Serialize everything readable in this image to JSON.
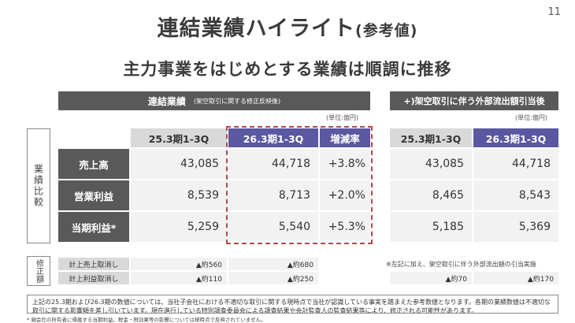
{
  "page": {
    "title": "連結業績ハイライト",
    "title_suffix": "(参考値)",
    "page_number": "11",
    "subtitle": "主力事業をはじめとする業績は順調に推移"
  },
  "left_table": {
    "header_main": "連結業績",
    "header_note": "(架空取引に関する修正反映後)",
    "unit": "(単位:億円)",
    "columns": [
      "25.3期1-3Q",
      "26.3期1-3Q",
      "増減率"
    ],
    "side_label": "業績比較",
    "rows": [
      {
        "label": "売上高",
        "prev": "43,085",
        "curr": "44,718",
        "change": "+3.8%"
      },
      {
        "label": "営業利益",
        "prev": "8,539",
        "curr": "8,713",
        "change": "+2.0%"
      },
      {
        "label": "当期利益*",
        "prev": "5,259",
        "curr": "5,540",
        "change": "+5.3%"
      }
    ]
  },
  "right_table": {
    "header": "+)架空取引に伴う外部流出額引当後",
    "unit": "(単位:億円)",
    "columns": [
      "25.3期1-3Q",
      "26.3期1-3Q"
    ],
    "rows": [
      {
        "prev": "43,085",
        "curr": "44,718"
      },
      {
        "prev": "8,465",
        "curr": "8,543"
      },
      {
        "prev": "5,185",
        "curr": "5,369"
      }
    ]
  },
  "corrections": {
    "side_label": "修正額",
    "rows": [
      {
        "label": "計上売上取消し",
        "prev": "▲約560",
        "curr": "▲約680"
      },
      {
        "label": "計上利益取消し",
        "prev": "▲約110",
        "curr": "▲約250"
      }
    ],
    "right_note": "※左記に加え、架空取引に伴う外部流出額の引当実施",
    "right_prev": "▲約70",
    "right_curr": "▲約170"
  },
  "footnote": {
    "text": "上記の25.3期および26.3期の数値については、当社子会社における不適切な取引に関する現時点で当社が認識している事実を踏まえた参考数値となります。各期の業績数値は不適切な取引に関する影響額を差し引いています。現在進行している特別調査委員会による調査結果や会計監査人の監査結果等により、修正される可能性があります。",
    "asterisk": "* 親会社の所有者に帰属する当期利益。税金・税効果等の影響については現時点で反映されていません。"
  },
  "colors": {
    "dark_header": "#595959",
    "accent_purple": "#5b57a0",
    "light_gray": "#d9d9d9",
    "cell_bg": "#f2f2f2",
    "dash_red": "#b04848"
  }
}
